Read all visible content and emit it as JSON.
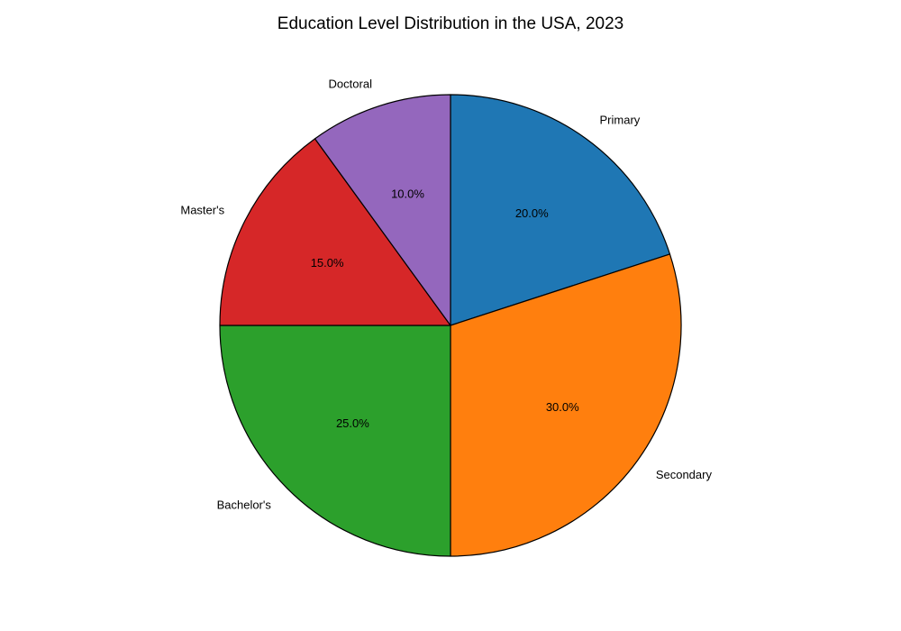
{
  "chart_data": {
    "type": "pie",
    "title": "Education Level Distribution in the USA, 2023",
    "categories": [
      "Primary",
      "Secondary",
      "Bachelor's",
      "Master's",
      "Doctoral"
    ],
    "values": [
      20,
      30,
      25,
      15,
      10
    ],
    "percent_labels": [
      "20.0%",
      "30.0%",
      "25.0%",
      "15.0%",
      "10.0%"
    ],
    "colors": [
      "#1f77b4",
      "#ff7f0e",
      "#2ca02c",
      "#d62728",
      "#9467bd"
    ],
    "start_angle_deg": 90,
    "direction": "clockwise",
    "edge_color": "#000000"
  }
}
